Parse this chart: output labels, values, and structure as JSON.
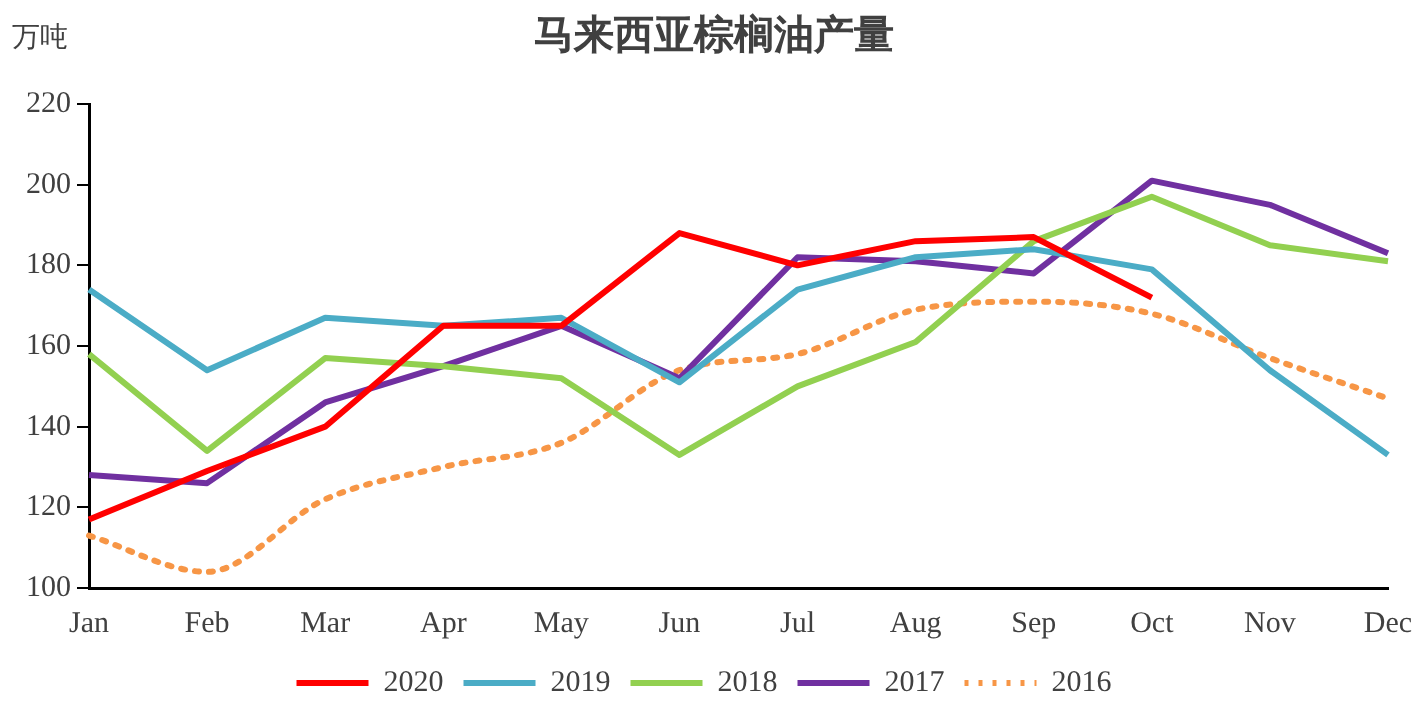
{
  "chart_data": {
    "type": "line",
    "title": "马来西亚棕榈油产量",
    "ylabel": "万吨",
    "categories": [
      "Jan",
      "Feb",
      "Mar",
      "Apr",
      "May",
      "Jun",
      "Jul",
      "Aug",
      "Sep",
      "Oct",
      "Nov",
      "Dec"
    ],
    "series": [
      {
        "name": "2020",
        "color": "#ff0000",
        "values": [
          117,
          129,
          140,
          165,
          165,
          188,
          180,
          186,
          187,
          172,
          null,
          null
        ]
      },
      {
        "name": "2019",
        "color": "#4bacc6",
        "values": [
          174,
          154,
          167,
          165,
          167,
          151,
          174,
          182,
          184,
          179,
          154,
          133
        ]
      },
      {
        "name": "2018",
        "color": "#92d050",
        "values": [
          158,
          134,
          157,
          155,
          152,
          133,
          150,
          161,
          186,
          197,
          185,
          181
        ]
      },
      {
        "name": "2017",
        "color": "#7030a0",
        "values": [
          128,
          126,
          146,
          155,
          165,
          152,
          182,
          181,
          178,
          201,
          195,
          183
        ]
      },
      {
        "name": "2016",
        "color": "#f79646",
        "line_style": "dotted",
        "values": [
          113,
          104,
          122,
          130,
          136,
          154,
          158,
          169,
          171,
          168,
          157,
          147
        ]
      }
    ],
    "ylim": [
      100,
      220
    ],
    "yticks": [
      100,
      120,
      140,
      160,
      180,
      200,
      220
    ],
    "grid": false,
    "legend": "bottom",
    "marker": "none",
    "line_style": "solid"
  }
}
